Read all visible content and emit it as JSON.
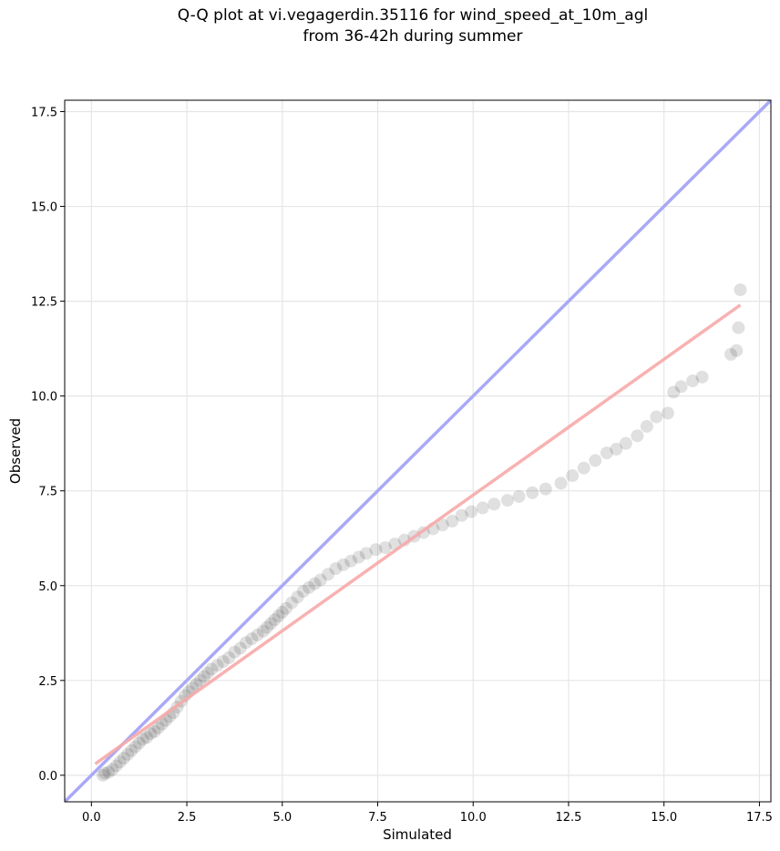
{
  "title_line1": "Q-Q plot at vi.vegagerdin.35116 for wind_speed_at_10m_agl",
  "title_line2": "from 36-42h during summer",
  "chart_data": {
    "type": "scatter",
    "xlabel": "Simulated",
    "ylabel": "Observed",
    "xlim": [
      -0.7,
      17.8
    ],
    "ylim": [
      -0.7,
      17.8
    ],
    "xticks": [
      0.0,
      2.5,
      5.0,
      7.5,
      10.0,
      12.5,
      15.0,
      17.5
    ],
    "yticks": [
      0.0,
      2.5,
      5.0,
      7.5,
      10.0,
      12.5,
      15.0,
      17.5
    ],
    "xtick_labels": [
      "0.0",
      "2.5",
      "5.0",
      "7.5",
      "10.0",
      "12.5",
      "15.0",
      "17.5"
    ],
    "ytick_labels": [
      "0.0",
      "2.5",
      "5.0",
      "7.5",
      "10.0",
      "12.5",
      "15.0",
      "17.5"
    ],
    "grid": true,
    "identity_line": {
      "color": "#a9a9f7",
      "from": [
        -0.7,
        -0.7
      ],
      "to": [
        17.8,
        17.8
      ]
    },
    "fit_line": {
      "color": "#f7a8a8",
      "from": [
        0.1,
        0.3
      ],
      "to": [
        17.0,
        12.4
      ]
    },
    "point_color": "#000000",
    "points": [
      [
        0.3,
        0.0
      ],
      [
        0.35,
        0.05
      ],
      [
        0.45,
        0.08
      ],
      [
        0.55,
        0.15
      ],
      [
        0.65,
        0.25
      ],
      [
        0.75,
        0.35
      ],
      [
        0.85,
        0.45
      ],
      [
        0.95,
        0.55
      ],
      [
        1.05,
        0.65
      ],
      [
        1.15,
        0.75
      ],
      [
        1.25,
        0.85
      ],
      [
        1.35,
        0.95
      ],
      [
        1.45,
        1.0
      ],
      [
        1.55,
        1.1
      ],
      [
        1.65,
        1.15
      ],
      [
        1.75,
        1.25
      ],
      [
        1.85,
        1.35
      ],
      [
        1.95,
        1.45
      ],
      [
        2.05,
        1.55
      ],
      [
        2.15,
        1.65
      ],
      [
        2.25,
        1.8
      ],
      [
        2.35,
        1.95
      ],
      [
        2.45,
        2.1
      ],
      [
        2.55,
        2.2
      ],
      [
        2.65,
        2.3
      ],
      [
        2.75,
        2.4
      ],
      [
        2.85,
        2.5
      ],
      [
        2.95,
        2.6
      ],
      [
        3.05,
        2.7
      ],
      [
        3.15,
        2.8
      ],
      [
        3.3,
        2.9
      ],
      [
        3.45,
        3.0
      ],
      [
        3.6,
        3.1
      ],
      [
        3.75,
        3.25
      ],
      [
        3.9,
        3.35
      ],
      [
        4.05,
        3.5
      ],
      [
        4.2,
        3.6
      ],
      [
        4.35,
        3.7
      ],
      [
        4.5,
        3.8
      ],
      [
        4.6,
        3.9
      ],
      [
        4.7,
        4.0
      ],
      [
        4.8,
        4.1
      ],
      [
        4.9,
        4.2
      ],
      [
        5.0,
        4.3
      ],
      [
        5.1,
        4.4
      ],
      [
        5.25,
        4.55
      ],
      [
        5.4,
        4.7
      ],
      [
        5.55,
        4.85
      ],
      [
        5.7,
        4.95
      ],
      [
        5.85,
        5.05
      ],
      [
        6.0,
        5.15
      ],
      [
        6.2,
        5.3
      ],
      [
        6.4,
        5.45
      ],
      [
        6.6,
        5.55
      ],
      [
        6.8,
        5.65
      ],
      [
        7.0,
        5.75
      ],
      [
        7.2,
        5.85
      ],
      [
        7.45,
        5.95
      ],
      [
        7.7,
        6.0
      ],
      [
        7.95,
        6.1
      ],
      [
        8.2,
        6.2
      ],
      [
        8.45,
        6.3
      ],
      [
        8.7,
        6.4
      ],
      [
        8.95,
        6.5
      ],
      [
        9.2,
        6.6
      ],
      [
        9.45,
        6.7
      ],
      [
        9.7,
        6.85
      ],
      [
        9.95,
        6.95
      ],
      [
        10.25,
        7.05
      ],
      [
        10.55,
        7.15
      ],
      [
        10.9,
        7.25
      ],
      [
        11.2,
        7.35
      ],
      [
        11.55,
        7.45
      ],
      [
        11.9,
        7.55
      ],
      [
        12.3,
        7.7
      ],
      [
        12.6,
        7.9
      ],
      [
        12.9,
        8.1
      ],
      [
        13.2,
        8.3
      ],
      [
        13.5,
        8.5
      ],
      [
        13.75,
        8.6
      ],
      [
        14.0,
        8.75
      ],
      [
        14.3,
        8.95
      ],
      [
        14.55,
        9.2
      ],
      [
        14.8,
        9.45
      ],
      [
        15.1,
        9.55
      ],
      [
        15.25,
        10.1
      ],
      [
        15.45,
        10.25
      ],
      [
        15.75,
        10.4
      ],
      [
        16.0,
        10.5
      ],
      [
        16.75,
        11.1
      ],
      [
        16.9,
        11.2
      ],
      [
        16.95,
        11.8
      ],
      [
        17.0,
        12.8
      ]
    ]
  }
}
